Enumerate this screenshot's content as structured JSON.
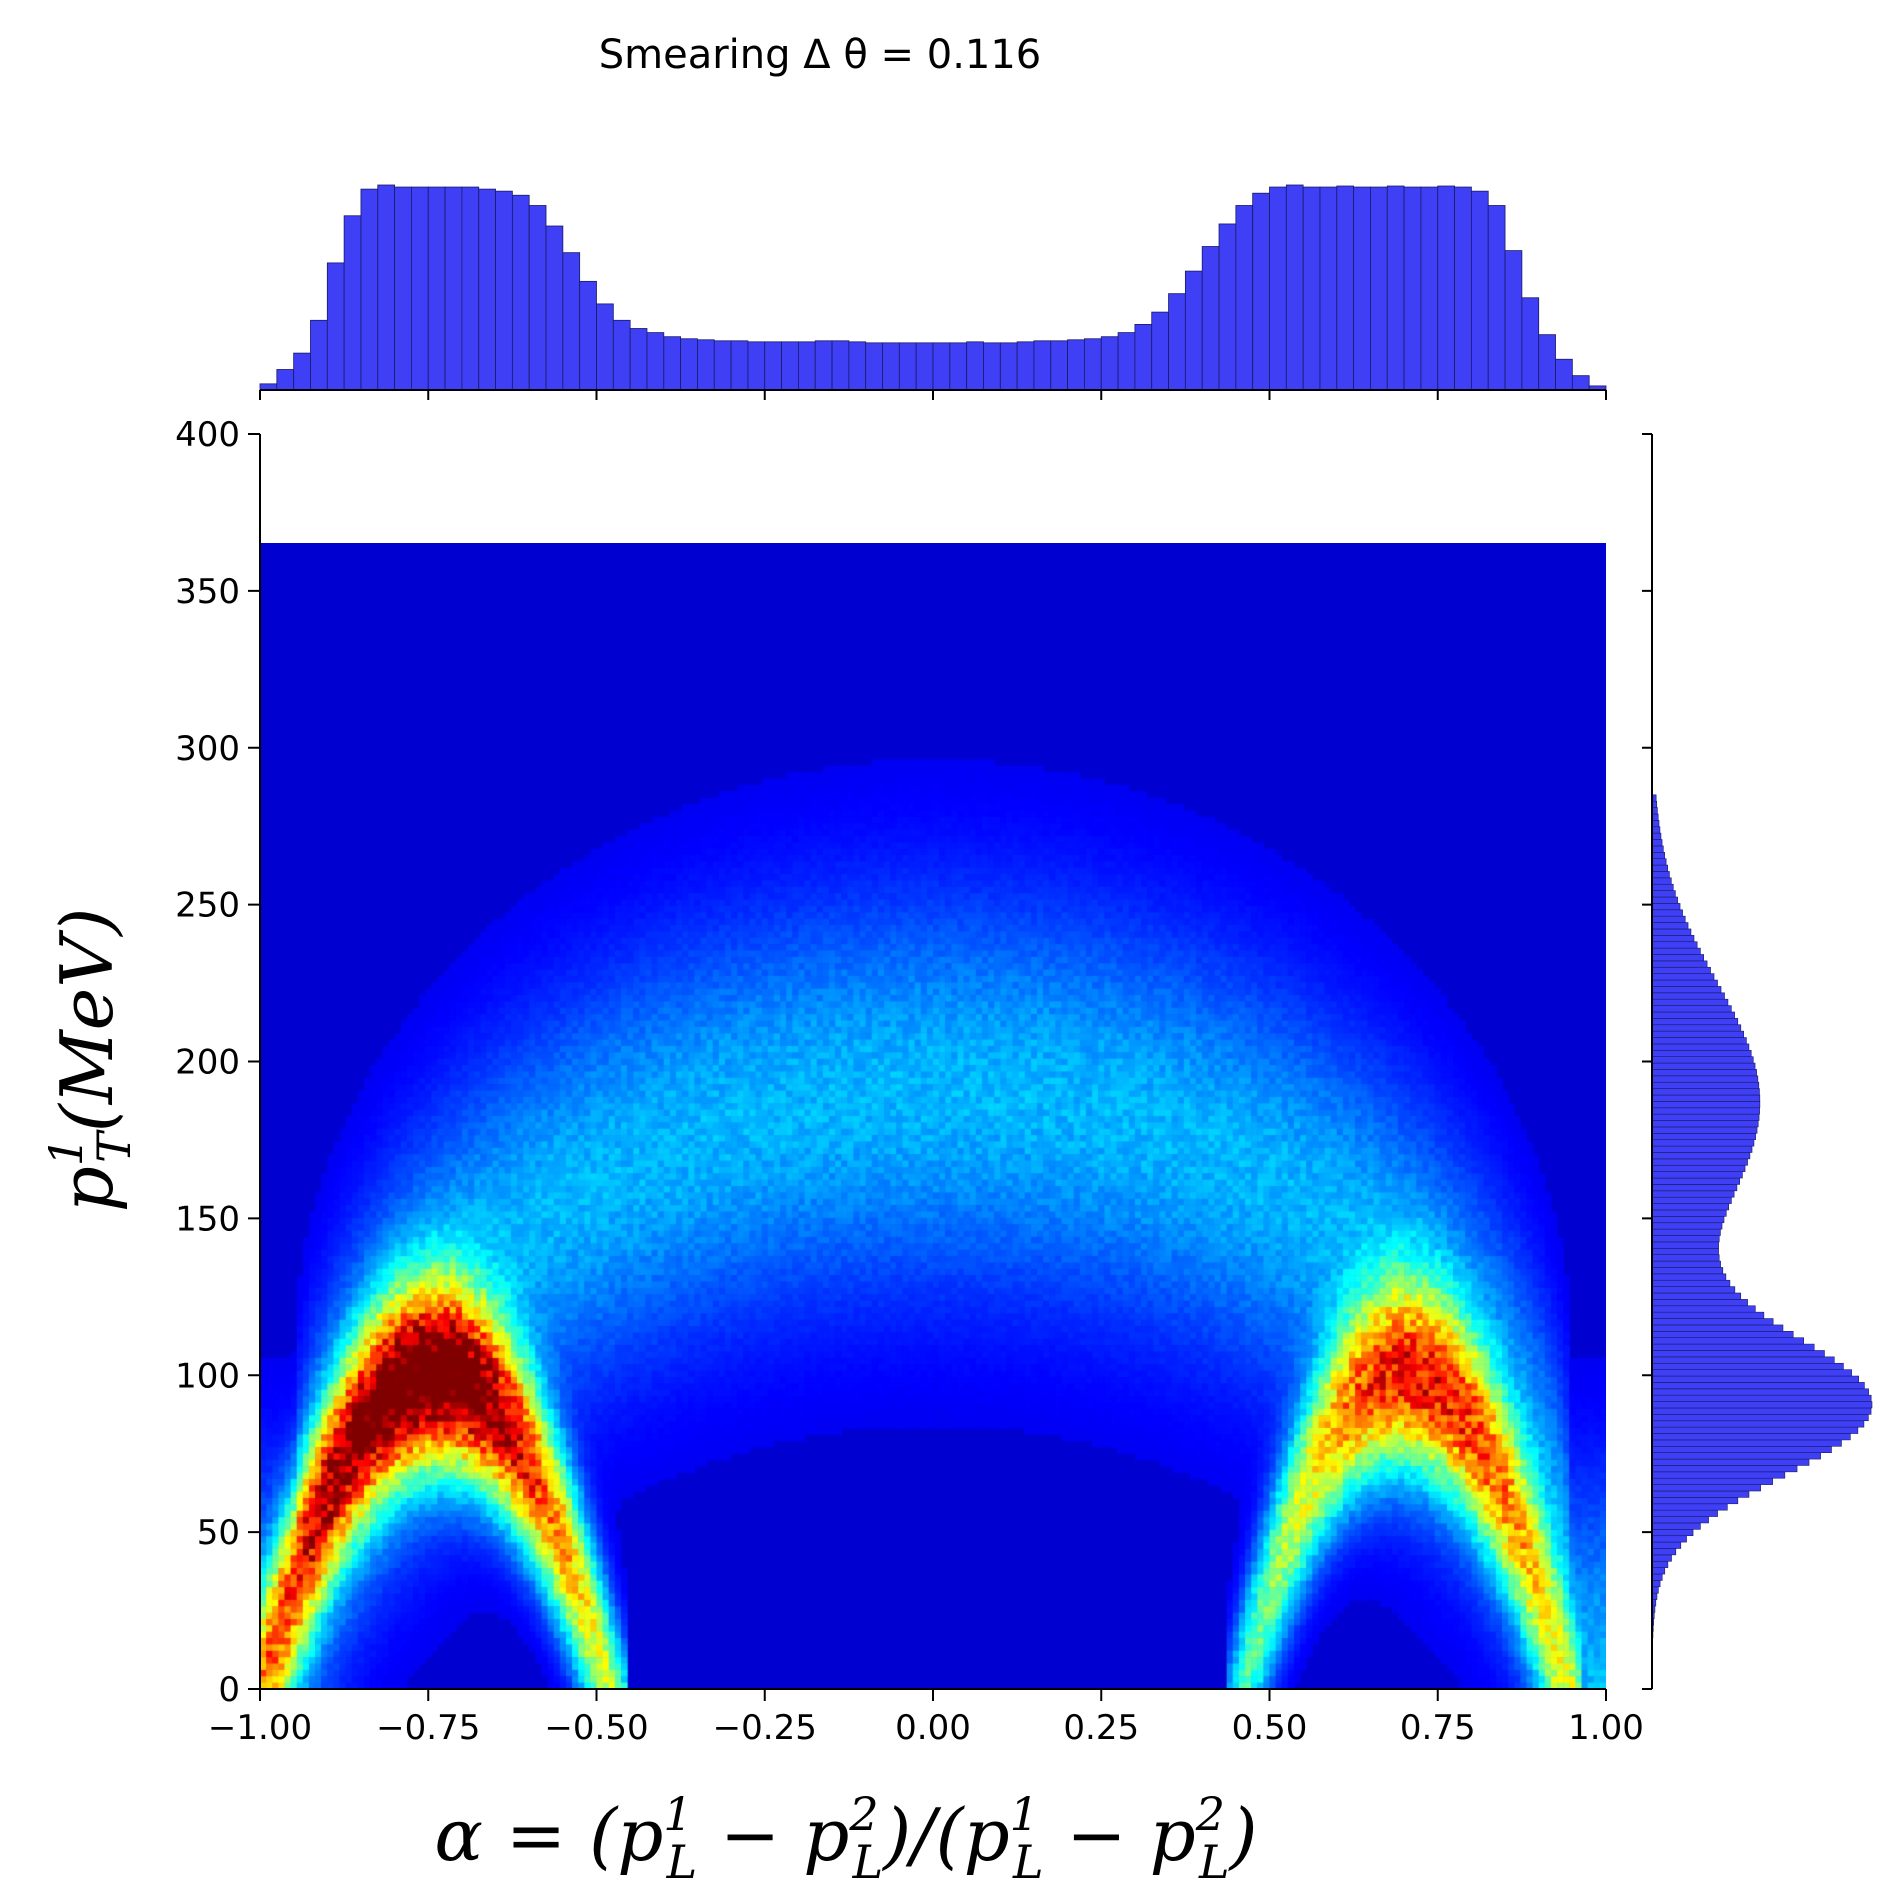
{
  "chart_data": {
    "type": "heatmap",
    "title": "Smearing Δ θ = 0.116",
    "xlabel": "α = (p¹ₗ − p²ₗ)/(p¹ₗ − p²ₗ)",
    "ylabel": "p¹ₜ(MeV)",
    "xlabel_parts": {
      "a": "α = (p",
      "b": "1",
      "c": "L",
      "d": " − p",
      "e": "2",
      "f": "L",
      "g": ")/(p",
      "h": "1",
      "i": "L",
      "j": " − p",
      "k": "2",
      "l": "L",
      "m": ")"
    },
    "ylabel_parts": {
      "a": "p",
      "b": "1",
      "c": "T",
      "d": "(MeV)"
    },
    "xlim": [
      -1.0,
      1.0
    ],
    "ylim": [
      0,
      400
    ],
    "xticks": [
      "−1.00",
      "−0.75",
      "−0.50",
      "−0.25",
      "0.00",
      "0.25",
      "0.50",
      "0.75",
      "1.00"
    ],
    "xtick_values": [
      -1.0,
      -0.75,
      -0.5,
      -0.25,
      0.0,
      0.25,
      0.5,
      0.75,
      1.0
    ],
    "yticks": [
      "0",
      "50",
      "100",
      "150",
      "200",
      "250",
      "300",
      "350",
      "400"
    ],
    "ytick_values": [
      0,
      50,
      100,
      150,
      200,
      250,
      300,
      350,
      400
    ],
    "data_ymax": 365,
    "colormap": "jet",
    "grid": false,
    "histogram_color": "#3f3ff5",
    "top_histogram": {
      "x_range": [
        -1.0,
        1.0
      ],
      "bins": 80,
      "relative_counts": [
        0.03,
        0.1,
        0.18,
        0.34,
        0.62,
        0.85,
        0.98,
        1.0,
        0.99,
        0.99,
        0.99,
        0.99,
        0.99,
        0.98,
        0.97,
        0.95,
        0.9,
        0.8,
        0.67,
        0.53,
        0.42,
        0.34,
        0.3,
        0.28,
        0.26,
        0.25,
        0.245,
        0.24,
        0.24,
        0.235,
        0.235,
        0.235,
        0.235,
        0.24,
        0.24,
        0.235,
        0.23,
        0.23,
        0.23,
        0.23,
        0.23,
        0.23,
        0.235,
        0.23,
        0.23,
        0.235,
        0.24,
        0.24,
        0.245,
        0.25,
        0.26,
        0.28,
        0.32,
        0.38,
        0.47,
        0.58,
        0.7,
        0.81,
        0.9,
        0.96,
        0.99,
        1.0,
        0.99,
        0.99,
        0.995,
        0.99,
        0.99,
        0.995,
        0.99,
        0.99,
        0.995,
        0.99,
        0.97,
        0.9,
        0.68,
        0.45,
        0.27,
        0.15,
        0.07,
        0.02
      ]
    },
    "right_histogram": {
      "y_range": [
        0,
        285
      ],
      "components": [
        {
          "center": 90,
          "sigma": 22,
          "weight": 1.0
        },
        {
          "center": 187,
          "sigma": 38,
          "weight": 0.5
        }
      ]
    },
    "density_components": [
      {
        "shape": "parabola_band",
        "x_center": -0.74,
        "x_half_width": 0.26,
        "peak_y": 100,
        "band_width": 20,
        "weight": 1.0
      },
      {
        "shape": "parabola_band",
        "x_center": 0.7,
        "x_half_width": 0.24,
        "peak_y": 100,
        "band_width": 20,
        "weight": 0.72
      },
      {
        "shape": "semicircle_band",
        "x_center": 0.0,
        "radius_x": 0.95,
        "peak_y": 190,
        "band_width": 45,
        "weight": 0.24
      }
    ]
  }
}
